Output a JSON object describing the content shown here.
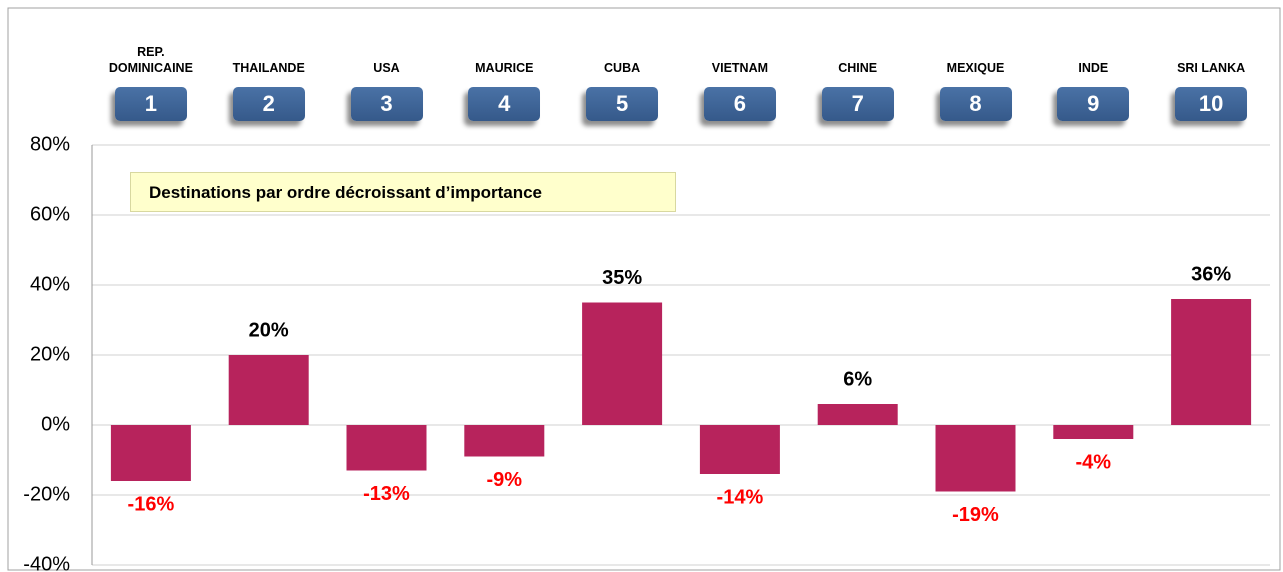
{
  "chart_data": {
    "type": "bar",
    "annotation": "Destinations par ordre décroissant d’importance",
    "categories": [
      "REP. DOMINICAINE",
      "THAILANDE",
      "USA",
      "MAURICE",
      "CUBA",
      "VIETNAM",
      "CHINE",
      "MEXIQUE",
      "INDE",
      "SRI LANKA"
    ],
    "ranks": [
      1,
      2,
      3,
      4,
      5,
      6,
      7,
      8,
      9,
      10
    ],
    "values": [
      -16,
      20,
      -13,
      -9,
      35,
      -14,
      6,
      -19,
      -4,
      36
    ],
    "value_labels": [
      "-16%",
      "20%",
      "-13%",
      "-9%",
      "35%",
      "-14%",
      "6%",
      "-19%",
      "-4%",
      "36%"
    ],
    "color": "#b7235c",
    "ylim": [
      -40,
      80
    ],
    "yticks": [
      {
        "value": -40,
        "label": "-40%"
      },
      {
        "value": -20,
        "label": "-20%"
      },
      {
        "value": 0,
        "label": "0%"
      },
      {
        "value": 20,
        "label": "20%"
      },
      {
        "value": 40,
        "label": "40%"
      },
      {
        "value": 60,
        "label": "60%"
      },
      {
        "value": 80,
        "label": "80%"
      }
    ],
    "grid": true
  }
}
